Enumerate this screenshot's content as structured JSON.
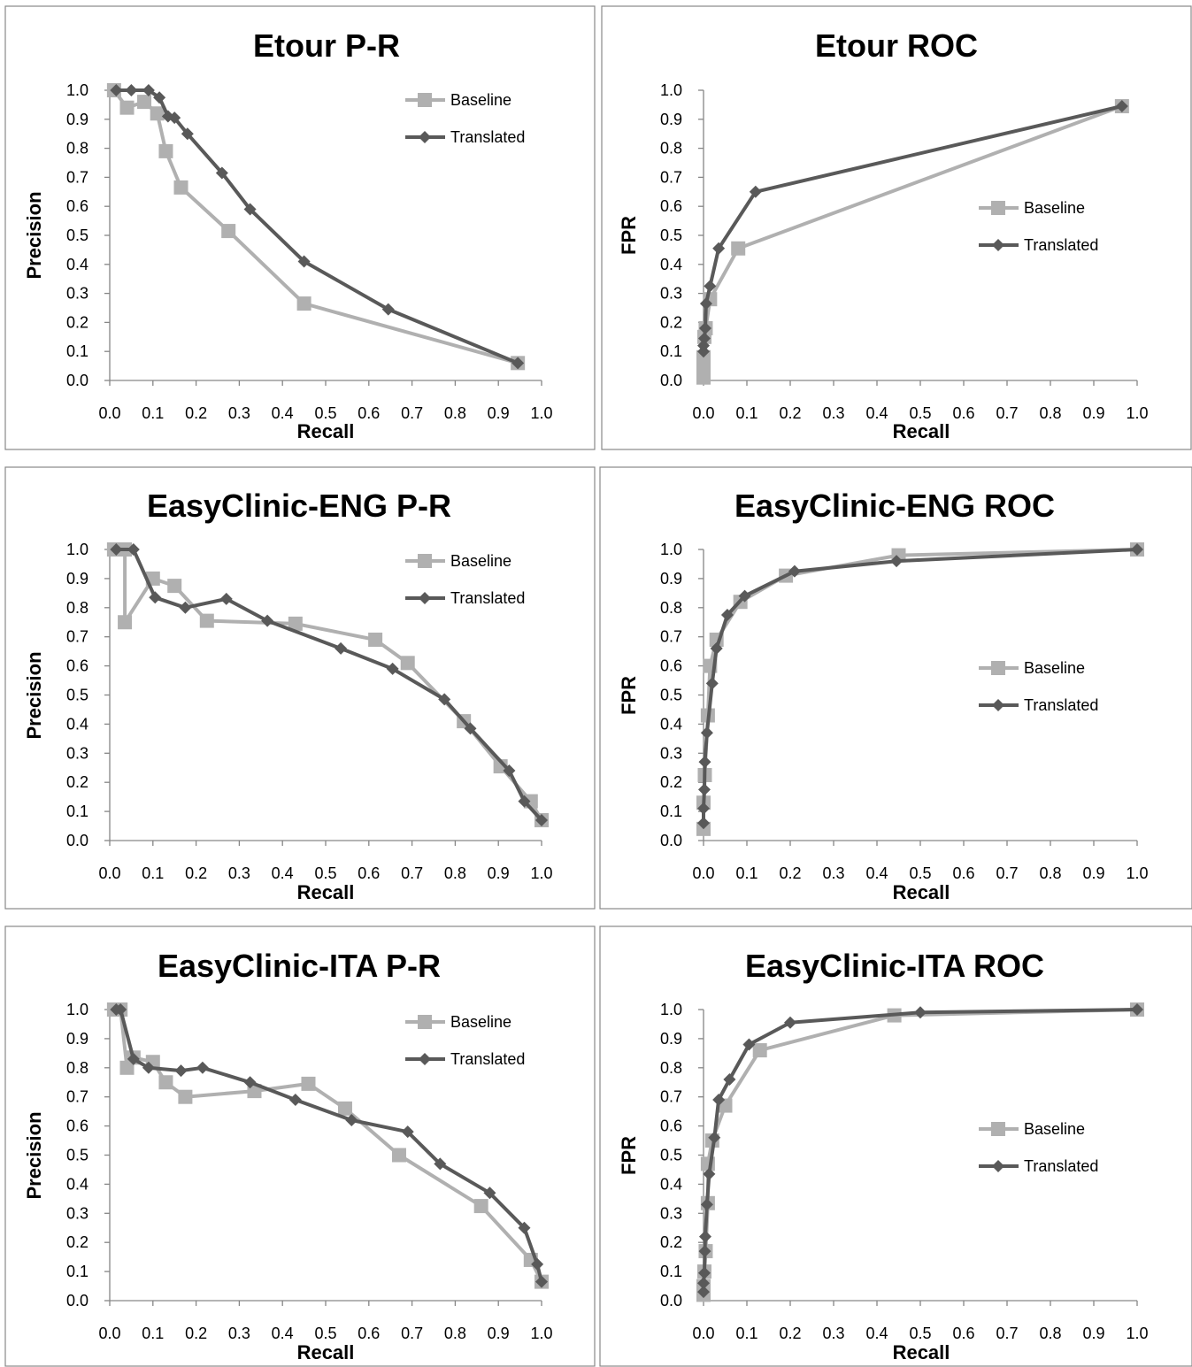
{
  "colors": {
    "baseline": "#b0b0b0",
    "translated": "#595959",
    "frame": "#888888",
    "axis": "#868686"
  },
  "chart_data": [
    {
      "type": "line",
      "title": "Etour P-R",
      "xlabel": "Recall",
      "ylabel": "Precision",
      "xlim": [
        0,
        1
      ],
      "ylim": [
        0,
        1
      ],
      "x_ticks": [
        "0.0",
        "0.1",
        "0.2",
        "0.3",
        "0.4",
        "0.5",
        "0.6",
        "0.7",
        "0.8",
        "0.9",
        "1.0"
      ],
      "y_ticks": [
        "0.0",
        "0.1",
        "0.2",
        "0.3",
        "0.4",
        "0.5",
        "0.6",
        "0.7",
        "0.8",
        "0.9",
        "1.0"
      ],
      "grid": false,
      "legend_position": "top-right",
      "series": [
        {
          "name": "Baseline",
          "marker": "square",
          "color": "#b0b0b0",
          "points": [
            [
              0.01,
              1.0
            ],
            [
              0.04,
              0.94
            ],
            [
              0.08,
              0.96
            ],
            [
              0.11,
              0.92
            ],
            [
              0.13,
              0.79
            ],
            [
              0.165,
              0.665
            ],
            [
              0.275,
              0.515
            ],
            [
              0.45,
              0.265
            ],
            [
              0.945,
              0.06
            ]
          ]
        },
        {
          "name": "Translated",
          "marker": "diamond",
          "color": "#595959",
          "points": [
            [
              0.015,
              1.0
            ],
            [
              0.05,
              1.0
            ],
            [
              0.09,
              1.0
            ],
            [
              0.115,
              0.975
            ],
            [
              0.135,
              0.91
            ],
            [
              0.15,
              0.905
            ],
            [
              0.18,
              0.85
            ],
            [
              0.26,
              0.715
            ],
            [
              0.325,
              0.59
            ],
            [
              0.45,
              0.41
            ],
            [
              0.645,
              0.245
            ],
            [
              0.945,
              0.06
            ]
          ]
        }
      ]
    },
    {
      "type": "line",
      "title": "Etour ROC",
      "xlabel": "Recall",
      "ylabel": "FPR",
      "xlim": [
        0,
        1
      ],
      "ylim": [
        0,
        1
      ],
      "x_ticks": [
        "0.0",
        "0.1",
        "0.2",
        "0.3",
        "0.4",
        "0.5",
        "0.6",
        "0.7",
        "0.8",
        "0.9",
        "1.0"
      ],
      "y_ticks": [
        "0.0",
        "0.1",
        "0.2",
        "0.3",
        "0.4",
        "0.5",
        "0.6",
        "0.7",
        "0.8",
        "0.9",
        "1.0"
      ],
      "grid": false,
      "legend_position": "right",
      "series": [
        {
          "name": "Baseline",
          "marker": "square",
          "color": "#b0b0b0",
          "points": [
            [
              0.0,
              0.01
            ],
            [
              0.0,
              0.04
            ],
            [
              0.0,
              0.08
            ],
            [
              0.002,
              0.15
            ],
            [
              0.005,
              0.18
            ],
            [
              0.015,
              0.28
            ],
            [
              0.08,
              0.455
            ],
            [
              0.965,
              0.945
            ]
          ]
        },
        {
          "name": "Translated",
          "marker": "diamond",
          "color": "#595959",
          "points": [
            [
              0.0,
              0.1
            ],
            [
              0.0,
              0.12
            ],
            [
              0.002,
              0.145
            ],
            [
              0.004,
              0.18
            ],
            [
              0.006,
              0.265
            ],
            [
              0.015,
              0.325
            ],
            [
              0.035,
              0.455
            ],
            [
              0.12,
              0.65
            ],
            [
              0.965,
              0.945
            ]
          ]
        }
      ]
    },
    {
      "type": "line",
      "title": "EasyClinic-ENG P-R",
      "xlabel": "Recall",
      "ylabel": "Precision",
      "xlim": [
        0,
        1
      ],
      "ylim": [
        0,
        1
      ],
      "x_ticks": [
        "0.0",
        "0.1",
        "0.2",
        "0.3",
        "0.4",
        "0.5",
        "0.6",
        "0.7",
        "0.8",
        "0.9",
        "1.0"
      ],
      "y_ticks": [
        "0.0",
        "0.1",
        "0.2",
        "0.3",
        "0.4",
        "0.5",
        "0.6",
        "0.7",
        "0.8",
        "0.9",
        "1.0"
      ],
      "grid": false,
      "legend_position": "top-right",
      "series": [
        {
          "name": "Baseline",
          "marker": "square",
          "color": "#b0b0b0",
          "points": [
            [
              0.01,
              1.0
            ],
            [
              0.035,
              1.0
            ],
            [
              0.035,
              0.75
            ],
            [
              0.1,
              0.9
            ],
            [
              0.15,
              0.875
            ],
            [
              0.225,
              0.755
            ],
            [
              0.43,
              0.745
            ],
            [
              0.615,
              0.69
            ],
            [
              0.69,
              0.61
            ],
            [
              0.82,
              0.41
            ],
            [
              0.905,
              0.255
            ],
            [
              0.975,
              0.135
            ],
            [
              1.0,
              0.07
            ]
          ]
        },
        {
          "name": "Translated",
          "marker": "diamond",
          "color": "#595959",
          "points": [
            [
              0.015,
              1.0
            ],
            [
              0.055,
              1.0
            ],
            [
              0.105,
              0.835
            ],
            [
              0.175,
              0.8
            ],
            [
              0.27,
              0.83
            ],
            [
              0.365,
              0.755
            ],
            [
              0.535,
              0.66
            ],
            [
              0.655,
              0.59
            ],
            [
              0.775,
              0.485
            ],
            [
              0.835,
              0.385
            ],
            [
              0.925,
              0.24
            ],
            [
              0.96,
              0.135
            ],
            [
              1.0,
              0.07
            ]
          ]
        }
      ]
    },
    {
      "type": "line",
      "title": "EasyClinic-ENG ROC",
      "xlabel": "Recall",
      "ylabel": "FPR",
      "xlim": [
        0,
        1
      ],
      "ylim": [
        0,
        1
      ],
      "x_ticks": [
        "0.0",
        "0.1",
        "0.2",
        "0.3",
        "0.4",
        "0.5",
        "0.6",
        "0.7",
        "0.8",
        "0.9",
        "1.0"
      ],
      "y_ticks": [
        "0.0",
        "0.1",
        "0.2",
        "0.3",
        "0.4",
        "0.5",
        "0.6",
        "0.7",
        "0.8",
        "0.9",
        "1.0"
      ],
      "grid": false,
      "legend_position": "right",
      "series": [
        {
          "name": "Baseline",
          "marker": "square",
          "color": "#b0b0b0",
          "points": [
            [
              0.0,
              0.04
            ],
            [
              0.0,
              0.13
            ],
            [
              0.003,
              0.225
            ],
            [
              0.01,
              0.43
            ],
            [
              0.015,
              0.6
            ],
            [
              0.03,
              0.69
            ],
            [
              0.085,
              0.82
            ],
            [
              0.19,
              0.91
            ],
            [
              0.45,
              0.98
            ],
            [
              1.0,
              1.0
            ]
          ]
        },
        {
          "name": "Translated",
          "marker": "diamond",
          "color": "#595959",
          "points": [
            [
              0.0,
              0.06
            ],
            [
              0.0,
              0.11
            ],
            [
              0.002,
              0.175
            ],
            [
              0.003,
              0.27
            ],
            [
              0.008,
              0.37
            ],
            [
              0.02,
              0.54
            ],
            [
              0.03,
              0.66
            ],
            [
              0.055,
              0.775
            ],
            [
              0.095,
              0.84
            ],
            [
              0.21,
              0.925
            ],
            [
              0.445,
              0.96
            ],
            [
              1.0,
              1.0
            ]
          ]
        }
      ]
    },
    {
      "type": "line",
      "title": "EasyClinic-ITA P-R",
      "xlabel": "Recall",
      "ylabel": "Precision",
      "xlim": [
        0,
        1
      ],
      "ylim": [
        0,
        1
      ],
      "x_ticks": [
        "0.0",
        "0.1",
        "0.2",
        "0.3",
        "0.4",
        "0.5",
        "0.6",
        "0.7",
        "0.8",
        "0.9",
        "1.0"
      ],
      "y_ticks": [
        "0.0",
        "0.1",
        "0.2",
        "0.3",
        "0.4",
        "0.5",
        "0.6",
        "0.7",
        "0.8",
        "0.9",
        "1.0"
      ],
      "grid": false,
      "legend_position": "top-right",
      "series": [
        {
          "name": "Baseline",
          "marker": "square",
          "color": "#b0b0b0",
          "points": [
            [
              0.01,
              1.0
            ],
            [
              0.025,
              1.0
            ],
            [
              0.04,
              0.8
            ],
            [
              0.055,
              0.835
            ],
            [
              0.1,
              0.82
            ],
            [
              0.13,
              0.75
            ],
            [
              0.175,
              0.7
            ],
            [
              0.335,
              0.72
            ],
            [
              0.46,
              0.745
            ],
            [
              0.545,
              0.66
            ],
            [
              0.67,
              0.5
            ],
            [
              0.86,
              0.325
            ],
            [
              0.975,
              0.14
            ],
            [
              1.0,
              0.065
            ]
          ]
        },
        {
          "name": "Translated",
          "marker": "diamond",
          "color": "#595959",
          "points": [
            [
              0.015,
              1.0
            ],
            [
              0.025,
              1.0
            ],
            [
              0.055,
              0.83
            ],
            [
              0.09,
              0.8
            ],
            [
              0.165,
              0.79
            ],
            [
              0.215,
              0.8
            ],
            [
              0.325,
              0.75
            ],
            [
              0.43,
              0.69
            ],
            [
              0.56,
              0.62
            ],
            [
              0.69,
              0.58
            ],
            [
              0.765,
              0.47
            ],
            [
              0.88,
              0.37
            ],
            [
              0.96,
              0.25
            ],
            [
              0.99,
              0.125
            ],
            [
              1.0,
              0.065
            ]
          ]
        }
      ]
    },
    {
      "type": "line",
      "title": "EasyClinic-ITA ROC",
      "xlabel": "Recall",
      "ylabel": "FPR",
      "xlim": [
        0,
        1
      ],
      "ylim": [
        0,
        1
      ],
      "x_ticks": [
        "0.0",
        "0.1",
        "0.2",
        "0.3",
        "0.4",
        "0.5",
        "0.6",
        "0.7",
        "0.8",
        "0.9",
        "1.0"
      ],
      "y_ticks": [
        "0.0",
        "0.1",
        "0.2",
        "0.3",
        "0.4",
        "0.5",
        "0.6",
        "0.7",
        "0.8",
        "0.9",
        "1.0"
      ],
      "grid": false,
      "legend_position": "right",
      "series": [
        {
          "name": "Baseline",
          "marker": "square",
          "color": "#b0b0b0",
          "points": [
            [
              0.0,
              0.02
            ],
            [
              0.0,
              0.05
            ],
            [
              0.002,
              0.1
            ],
            [
              0.005,
              0.17
            ],
            [
              0.01,
              0.335
            ],
            [
              0.01,
              0.47
            ],
            [
              0.02,
              0.55
            ],
            [
              0.05,
              0.67
            ],
            [
              0.13,
              0.86
            ],
            [
              0.44,
              0.98
            ],
            [
              1.0,
              1.0
            ]
          ]
        },
        {
          "name": "Translated",
          "marker": "diamond",
          "color": "#595959",
          "points": [
            [
              0.0,
              0.03
            ],
            [
              0.0,
              0.06
            ],
            [
              0.002,
              0.095
            ],
            [
              0.003,
              0.17
            ],
            [
              0.004,
              0.22
            ],
            [
              0.008,
              0.33
            ],
            [
              0.013,
              0.435
            ],
            [
              0.025,
              0.56
            ],
            [
              0.035,
              0.69
            ],
            [
              0.06,
              0.76
            ],
            [
              0.105,
              0.88
            ],
            [
              0.2,
              0.955
            ],
            [
              0.5,
              0.99
            ],
            [
              1.0,
              1.0
            ]
          ]
        }
      ]
    }
  ]
}
